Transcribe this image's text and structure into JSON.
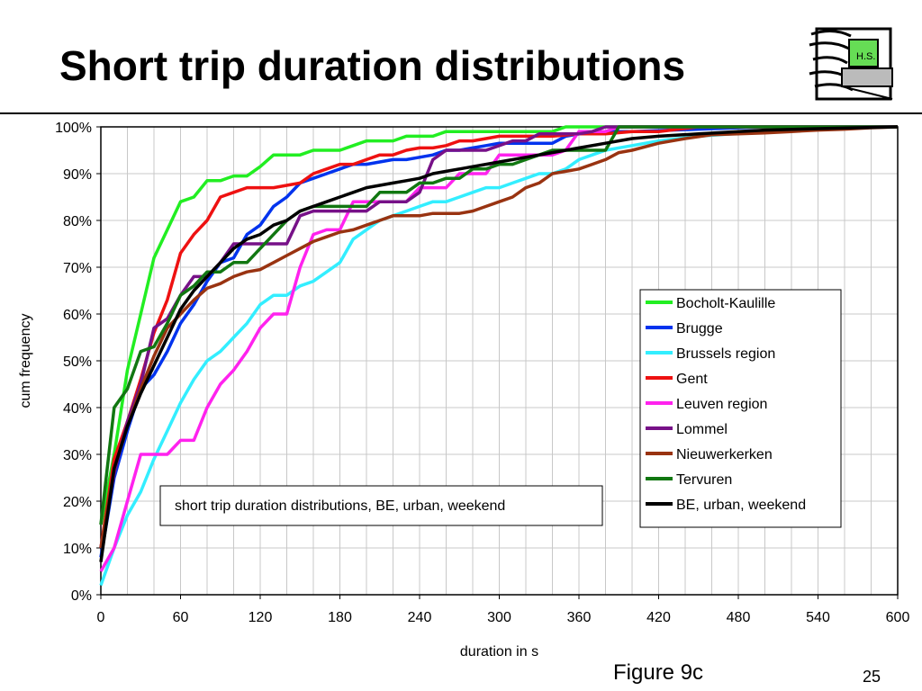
{
  "slide": {
    "title": "Short trip duration distributions",
    "logo_text": "H.S.",
    "figure_label": "Figure 9c",
    "page_number": "25"
  },
  "chart_data": {
    "type": "line",
    "xlabel": "duration in s",
    "ylabel": "cum frequency",
    "annotation": "short trip duration distributions, BE, urban, weekend",
    "xlim": [
      0,
      600
    ],
    "ylim": [
      0,
      1
    ],
    "xticks": [
      "0",
      "60",
      "120",
      "180",
      "240",
      "300",
      "360",
      "420",
      "480",
      "540",
      "600"
    ],
    "yticks": [
      "0%",
      "10%",
      "20%",
      "30%",
      "40%",
      "50%",
      "60%",
      "70%",
      "80%",
      "90%",
      "100%"
    ],
    "grid": true,
    "legend_position": "right",
    "series": [
      {
        "name": "Bocholt-Kaulille",
        "color": "#22ee22",
        "x": [
          0,
          10,
          20,
          30,
          40,
          50,
          60,
          70,
          80,
          90,
          100,
          110,
          120,
          130,
          140,
          150,
          160,
          170,
          180,
          190,
          200,
          210,
          220,
          230,
          240,
          250,
          260,
          270,
          280,
          290,
          300,
          310,
          320,
          330,
          340,
          350,
          360,
          370,
          380,
          390,
          400,
          420,
          450,
          500,
          550,
          600
        ],
        "y": [
          0.15,
          0.3,
          0.48,
          0.6,
          0.72,
          0.78,
          0.84,
          0.85,
          0.885,
          0.885,
          0.895,
          0.895,
          0.915,
          0.94,
          0.94,
          0.94,
          0.95,
          0.95,
          0.95,
          0.96,
          0.97,
          0.97,
          0.97,
          0.98,
          0.98,
          0.98,
          0.99,
          0.99,
          0.99,
          0.99,
          0.99,
          0.99,
          0.99,
          0.99,
          0.99,
          1.0,
          1.0,
          1.0,
          1.0,
          1.0,
          1.0,
          1.0,
          1.0,
          1.0,
          1.0,
          1.0
        ]
      },
      {
        "name": "Brugge",
        "color": "#0033ee",
        "x": [
          0,
          10,
          20,
          30,
          40,
          50,
          60,
          70,
          80,
          90,
          100,
          110,
          120,
          130,
          140,
          150,
          160,
          170,
          180,
          190,
          200,
          210,
          220,
          230,
          240,
          250,
          260,
          270,
          280,
          290,
          300,
          310,
          320,
          330,
          340,
          350,
          360,
          370,
          380,
          400,
          450,
          500,
          600
        ],
        "y": [
          0.08,
          0.25,
          0.35,
          0.44,
          0.47,
          0.52,
          0.58,
          0.62,
          0.67,
          0.71,
          0.72,
          0.77,
          0.79,
          0.83,
          0.85,
          0.88,
          0.89,
          0.9,
          0.91,
          0.92,
          0.92,
          0.925,
          0.93,
          0.93,
          0.935,
          0.94,
          0.95,
          0.95,
          0.955,
          0.96,
          0.965,
          0.965,
          0.965,
          0.965,
          0.965,
          0.98,
          0.985,
          0.99,
          0.99,
          0.99,
          0.995,
          1.0,
          1.0
        ]
      },
      {
        "name": "Brussels region",
        "color": "#33eeff",
        "x": [
          0,
          10,
          20,
          30,
          40,
          50,
          60,
          70,
          80,
          90,
          100,
          110,
          120,
          130,
          140,
          150,
          160,
          170,
          180,
          190,
          200,
          210,
          220,
          230,
          240,
          250,
          260,
          270,
          280,
          290,
          300,
          310,
          320,
          330,
          340,
          350,
          360,
          370,
          380,
          400,
          420,
          450,
          500,
          550,
          600
        ],
        "y": [
          0.02,
          0.1,
          0.17,
          0.22,
          0.29,
          0.35,
          0.41,
          0.46,
          0.5,
          0.52,
          0.55,
          0.58,
          0.62,
          0.64,
          0.64,
          0.66,
          0.67,
          0.69,
          0.71,
          0.76,
          0.78,
          0.8,
          0.81,
          0.82,
          0.83,
          0.84,
          0.84,
          0.85,
          0.86,
          0.87,
          0.87,
          0.88,
          0.89,
          0.9,
          0.9,
          0.91,
          0.93,
          0.94,
          0.95,
          0.96,
          0.97,
          0.98,
          0.99,
          1.0,
          1.0
        ]
      },
      {
        "name": "Gent",
        "color": "#ee1111",
        "x": [
          0,
          10,
          20,
          30,
          40,
          50,
          60,
          70,
          80,
          90,
          100,
          110,
          120,
          130,
          140,
          150,
          160,
          170,
          180,
          190,
          200,
          210,
          220,
          230,
          240,
          250,
          260,
          270,
          280,
          290,
          300,
          320,
          340,
          360,
          380,
          400,
          420,
          450,
          500,
          600
        ],
        "y": [
          0.1,
          0.29,
          0.37,
          0.46,
          0.56,
          0.63,
          0.73,
          0.77,
          0.8,
          0.85,
          0.86,
          0.87,
          0.87,
          0.87,
          0.875,
          0.88,
          0.9,
          0.91,
          0.92,
          0.92,
          0.93,
          0.94,
          0.94,
          0.95,
          0.955,
          0.955,
          0.96,
          0.97,
          0.97,
          0.975,
          0.98,
          0.98,
          0.98,
          0.985,
          0.985,
          0.99,
          0.99,
          1.0,
          1.0,
          1.0
        ]
      },
      {
        "name": "Leuven region",
        "color": "#ff22ee",
        "x": [
          0,
          10,
          20,
          30,
          40,
          50,
          60,
          70,
          80,
          90,
          100,
          110,
          120,
          130,
          140,
          150,
          160,
          170,
          180,
          190,
          200,
          210,
          220,
          230,
          240,
          250,
          260,
          270,
          280,
          290,
          300,
          310,
          320,
          330,
          340,
          350,
          360,
          370,
          380,
          390,
          400,
          450,
          500,
          600
        ],
        "y": [
          0.05,
          0.1,
          0.2,
          0.3,
          0.3,
          0.3,
          0.33,
          0.33,
          0.4,
          0.45,
          0.48,
          0.52,
          0.57,
          0.6,
          0.6,
          0.7,
          0.77,
          0.78,
          0.78,
          0.84,
          0.84,
          0.84,
          0.84,
          0.84,
          0.87,
          0.87,
          0.87,
          0.9,
          0.9,
          0.9,
          0.94,
          0.94,
          0.94,
          0.94,
          0.94,
          0.95,
          0.99,
          0.99,
          0.99,
          1.0,
          1.0,
          1.0,
          1.0,
          1.0
        ]
      },
      {
        "name": "Lommel",
        "color": "#771188",
        "x": [
          0,
          10,
          20,
          30,
          40,
          50,
          60,
          70,
          80,
          90,
          100,
          110,
          120,
          130,
          140,
          150,
          160,
          170,
          180,
          190,
          200,
          210,
          220,
          230,
          240,
          250,
          260,
          270,
          280,
          290,
          300,
          310,
          320,
          330,
          340,
          350,
          360,
          370,
          380,
          400,
          450,
          500,
          600
        ],
        "y": [
          0.1,
          0.26,
          0.37,
          0.45,
          0.57,
          0.59,
          0.64,
          0.68,
          0.68,
          0.71,
          0.75,
          0.75,
          0.75,
          0.75,
          0.75,
          0.81,
          0.82,
          0.82,
          0.82,
          0.82,
          0.82,
          0.84,
          0.84,
          0.84,
          0.86,
          0.93,
          0.95,
          0.95,
          0.95,
          0.95,
          0.96,
          0.97,
          0.97,
          0.985,
          0.985,
          0.985,
          0.985,
          0.99,
          1.0,
          1.0,
          1.0,
          1.0,
          1.0
        ]
      },
      {
        "name": "Nieuwerkerken",
        "color": "#993311",
        "x": [
          0,
          10,
          20,
          30,
          40,
          50,
          60,
          70,
          80,
          90,
          100,
          110,
          120,
          130,
          140,
          150,
          160,
          170,
          180,
          190,
          200,
          210,
          220,
          230,
          240,
          250,
          260,
          270,
          280,
          290,
          300,
          310,
          320,
          330,
          340,
          350,
          360,
          370,
          380,
          390,
          400,
          420,
          440,
          460,
          480,
          500,
          520,
          540,
          560,
          580,
          600
        ],
        "y": [
          0.1,
          0.27,
          0.36,
          0.44,
          0.51,
          0.57,
          0.6,
          0.63,
          0.655,
          0.665,
          0.68,
          0.69,
          0.695,
          0.71,
          0.725,
          0.74,
          0.755,
          0.765,
          0.775,
          0.78,
          0.79,
          0.8,
          0.81,
          0.81,
          0.81,
          0.815,
          0.815,
          0.815,
          0.82,
          0.83,
          0.84,
          0.85,
          0.87,
          0.88,
          0.9,
          0.905,
          0.91,
          0.92,
          0.93,
          0.945,
          0.95,
          0.965,
          0.975,
          0.983,
          0.985,
          0.987,
          0.99,
          0.993,
          0.995,
          0.998,
          1.0
        ]
      },
      {
        "name": "Tervuren",
        "color": "#117711",
        "x": [
          0,
          10,
          20,
          30,
          40,
          50,
          60,
          70,
          80,
          90,
          100,
          110,
          120,
          130,
          140,
          150,
          160,
          170,
          180,
          190,
          200,
          210,
          220,
          230,
          240,
          250,
          260,
          270,
          280,
          290,
          300,
          310,
          320,
          330,
          340,
          350,
          360,
          370,
          380,
          390,
          400,
          450,
          500,
          600
        ],
        "y": [
          0.15,
          0.4,
          0.44,
          0.52,
          0.53,
          0.58,
          0.64,
          0.66,
          0.69,
          0.69,
          0.71,
          0.71,
          0.74,
          0.77,
          0.8,
          0.82,
          0.83,
          0.83,
          0.83,
          0.83,
          0.83,
          0.86,
          0.86,
          0.86,
          0.88,
          0.88,
          0.89,
          0.89,
          0.91,
          0.91,
          0.92,
          0.92,
          0.93,
          0.94,
          0.95,
          0.95,
          0.95,
          0.95,
          0.95,
          1.0,
          1.0,
          1.0,
          1.0,
          1.0
        ]
      },
      {
        "name": "BE, urban, weekend",
        "color": "#000000",
        "x": [
          0,
          10,
          20,
          30,
          40,
          50,
          60,
          70,
          80,
          90,
          100,
          110,
          120,
          130,
          140,
          150,
          160,
          170,
          180,
          190,
          200,
          210,
          220,
          230,
          240,
          250,
          260,
          270,
          280,
          290,
          300,
          320,
          340,
          360,
          380,
          400,
          420,
          450,
          480,
          500,
          550,
          600
        ],
        "y": [
          0.07,
          0.27,
          0.36,
          0.43,
          0.49,
          0.55,
          0.61,
          0.65,
          0.68,
          0.71,
          0.74,
          0.76,
          0.77,
          0.79,
          0.8,
          0.82,
          0.83,
          0.84,
          0.85,
          0.86,
          0.87,
          0.875,
          0.88,
          0.885,
          0.89,
          0.9,
          0.905,
          0.91,
          0.915,
          0.92,
          0.925,
          0.935,
          0.945,
          0.955,
          0.965,
          0.975,
          0.98,
          0.985,
          0.99,
          0.993,
          0.997,
          1.0
        ]
      }
    ]
  }
}
